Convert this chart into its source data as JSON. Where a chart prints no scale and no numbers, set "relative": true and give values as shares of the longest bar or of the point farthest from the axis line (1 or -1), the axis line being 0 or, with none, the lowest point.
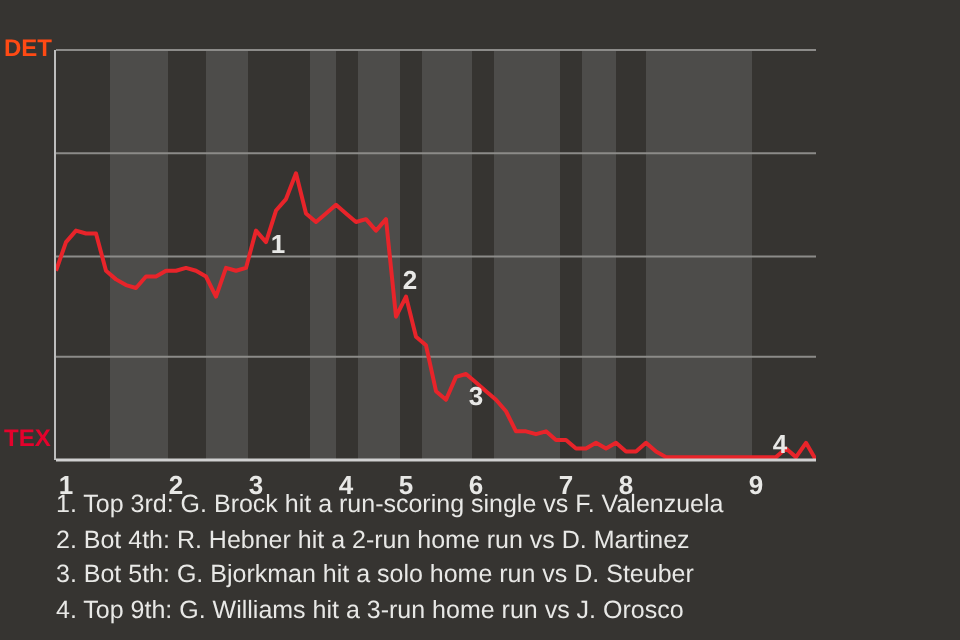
{
  "chart_data": {
    "type": "line",
    "relative": true,
    "categories": [
      null,
      "1",
      null,
      null,
      null,
      null,
      null,
      null,
      null,
      null,
      null,
      null,
      "2",
      null,
      null,
      null,
      null,
      null,
      null,
      null,
      "3",
      null,
      null,
      null,
      null,
      null,
      null,
      null,
      null,
      "4",
      null,
      null,
      null,
      null,
      null,
      "5",
      null,
      null,
      null,
      null,
      null,
      null,
      "6",
      null,
      null,
      null,
      null,
      null,
      null,
      null,
      null,
      "7",
      null,
      null,
      null,
      null,
      null,
      "8",
      null,
      null,
      null,
      null,
      null,
      null,
      null,
      null,
      null,
      null,
      null,
      null,
      "9",
      null,
      null,
      null,
      null,
      null,
      null
    ],
    "series": [
      {
        "color": "#e8242a",
        "values": [
          0.66,
          0.76,
          0.8,
          0.79,
          0.79,
          0.66,
          0.63,
          0.61,
          0.6,
          0.64,
          0.64,
          0.66,
          0.66,
          0.67,
          0.66,
          0.64,
          0.57,
          0.67,
          0.66,
          0.67,
          0.8,
          0.76,
          0.87,
          0.91,
          1,
          0.86,
          0.83,
          0.86,
          0.89,
          0.86,
          0.83,
          0.84,
          0.8,
          0.84,
          0.5,
          0.57,
          0.43,
          0.4,
          0.24,
          0.21,
          0.29,
          0.3,
          0.27,
          0.24,
          0.21,
          0.17,
          0.1,
          0.1,
          0.09,
          0.1,
          0.07,
          0.07,
          0.04,
          0.04,
          0.06,
          0.04,
          0.06,
          0.03,
          0.03,
          0.06,
          0.03,
          0.01,
          0.01,
          0.01,
          0.01,
          0.01,
          0.01,
          0.01,
          0.01,
          0.01,
          0.01,
          0.01,
          0.01,
          0.04,
          0.01,
          0.06,
          0
        ]
      }
    ],
    "ref_lines": [
      {
        "axis": "y",
        "value": 0.36,
        "color": "#8c8b89"
      },
      {
        "axis": "y",
        "value": 0.71,
        "color": "#8c8b89"
      },
      {
        "axis": "y",
        "value": 1.07,
        "color": "#8c8b89"
      },
      {
        "axis": "y",
        "value": 1.43,
        "color": "#8c8b89"
      }
    ],
    "legend": false,
    "marker": "none",
    "line_style": "solid",
    "annotations": [
      "DET",
      "TEX",
      "1",
      "2",
      "3",
      "4",
      "1. Top 3rd: G. Brock hit a run-scoring single vs F. Valenzuela",
      "2. Bot 4th: R. Hebner hit a 2-run home run vs D. Martinez",
      "3. Bot 5th: G. Bjorkman hit a solo home run vs D. Steuber",
      "4. Top 9th: G. Williams hit a 3-run home run vs J. Orosco"
    ]
  }
}
